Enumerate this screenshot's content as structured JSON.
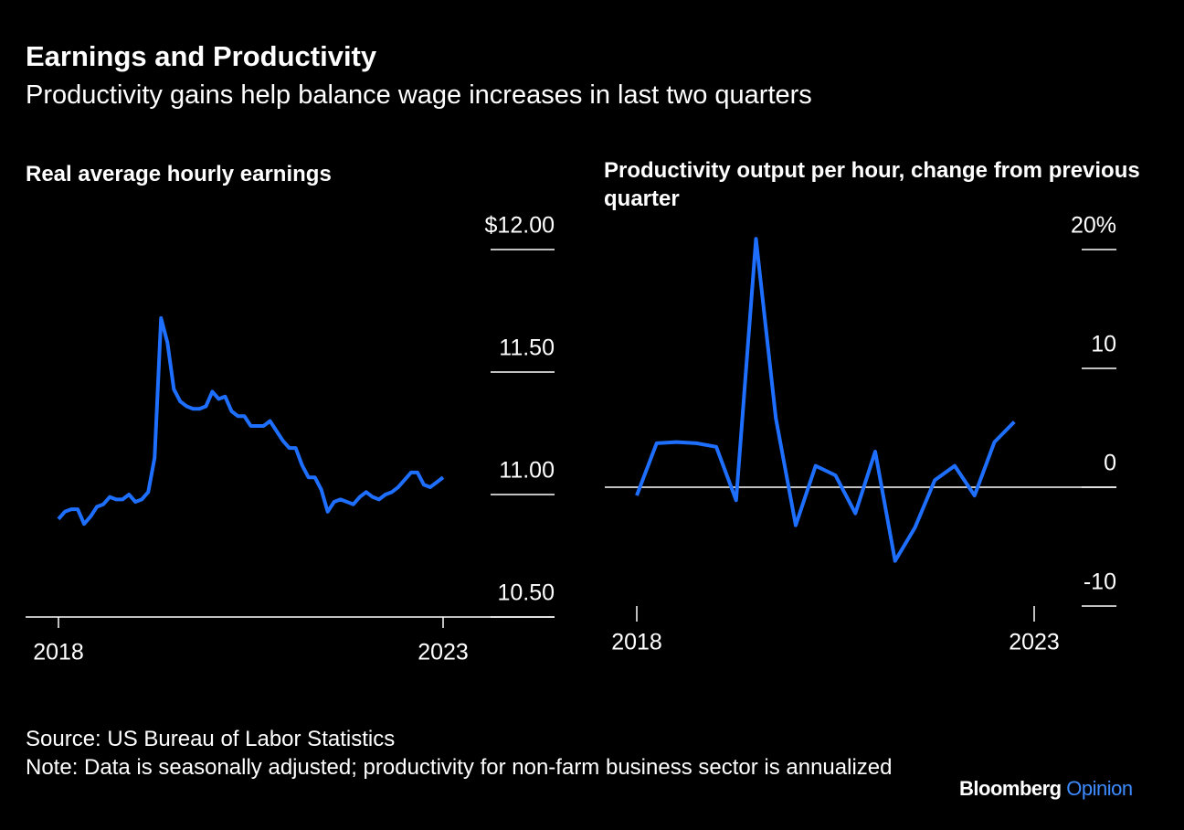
{
  "title": "Earnings and Productivity",
  "subtitle": "Productivity gains help balance wage increases in last two quarters",
  "source": "Source: US Bureau of Labor Statistics",
  "note": "Note: Data is seasonally adjusted; productivity for non-farm business sector is annualized",
  "brand": {
    "name": "Bloomberg",
    "product": "Opinion"
  },
  "chart_data": [
    {
      "type": "line",
      "title": "Real average hourly earnings",
      "color": "#1f6fff",
      "categories": [
        "2018",
        null,
        null,
        null,
        null,
        null,
        null,
        null,
        null,
        null,
        null,
        null,
        null,
        null,
        null,
        null,
        null,
        null,
        null,
        null,
        null,
        null,
        null,
        null,
        null,
        null,
        null,
        null,
        null,
        null,
        null,
        null,
        null,
        null,
        null,
        null,
        null,
        null,
        null,
        null,
        null,
        null,
        null,
        null,
        null,
        null,
        null,
        null,
        null,
        null,
        null,
        null,
        null,
        null,
        null,
        null,
        null,
        null,
        null,
        null,
        "2023"
      ],
      "values": [
        10.9,
        10.93,
        10.94,
        10.94,
        10.88,
        10.91,
        10.95,
        10.96,
        10.99,
        10.98,
        10.98,
        11.0,
        10.97,
        10.98,
        11.01,
        11.15,
        11.72,
        11.62,
        11.43,
        11.38,
        11.36,
        11.35,
        11.35,
        11.36,
        11.42,
        11.39,
        11.4,
        11.34,
        11.32,
        11.32,
        11.28,
        11.28,
        11.28,
        11.3,
        11.26,
        11.22,
        11.19,
        11.19,
        11.12,
        11.07,
        11.07,
        11.02,
        10.93,
        10.97,
        10.98,
        10.97,
        10.96,
        10.99,
        11.01,
        10.99,
        10.98,
        11.0,
        11.01,
        11.03,
        11.06,
        11.09,
        11.09,
        11.04,
        11.03,
        11.05,
        11.07
      ],
      "ylim": [
        10.5,
        12
      ],
      "yticks": [
        {
          "value": 12,
          "label": "$12.00"
        },
        {
          "value": 11.5,
          "label": "11.50"
        },
        {
          "value": 11,
          "label": "11.00"
        },
        {
          "value": 10.5,
          "label": "10.50"
        }
      ]
    },
    {
      "type": "line",
      "title": "Productivity output per hour, change from previous quarter",
      "color": "#1f6fff",
      "categories": [
        "2018",
        null,
        null,
        null,
        null,
        null,
        null,
        null,
        null,
        null,
        null,
        null,
        null,
        null,
        null,
        null,
        null,
        null,
        null,
        null,
        "2023"
      ],
      "values": [
        -0.7,
        3.7,
        3.8,
        3.7,
        3.4,
        -1.1,
        20.9,
        5.8,
        -3.2,
        1.8,
        1.0,
        -2.2,
        3.0,
        -6.2,
        -3.4,
        0.6,
        1.8,
        -0.7,
        3.8,
        5.5,
        null
      ],
      "ylim": [
        -10,
        20
      ],
      "yticks": [
        {
          "value": 20,
          "label": "20%"
        },
        10,
        0,
        -10
      ]
    }
  ]
}
